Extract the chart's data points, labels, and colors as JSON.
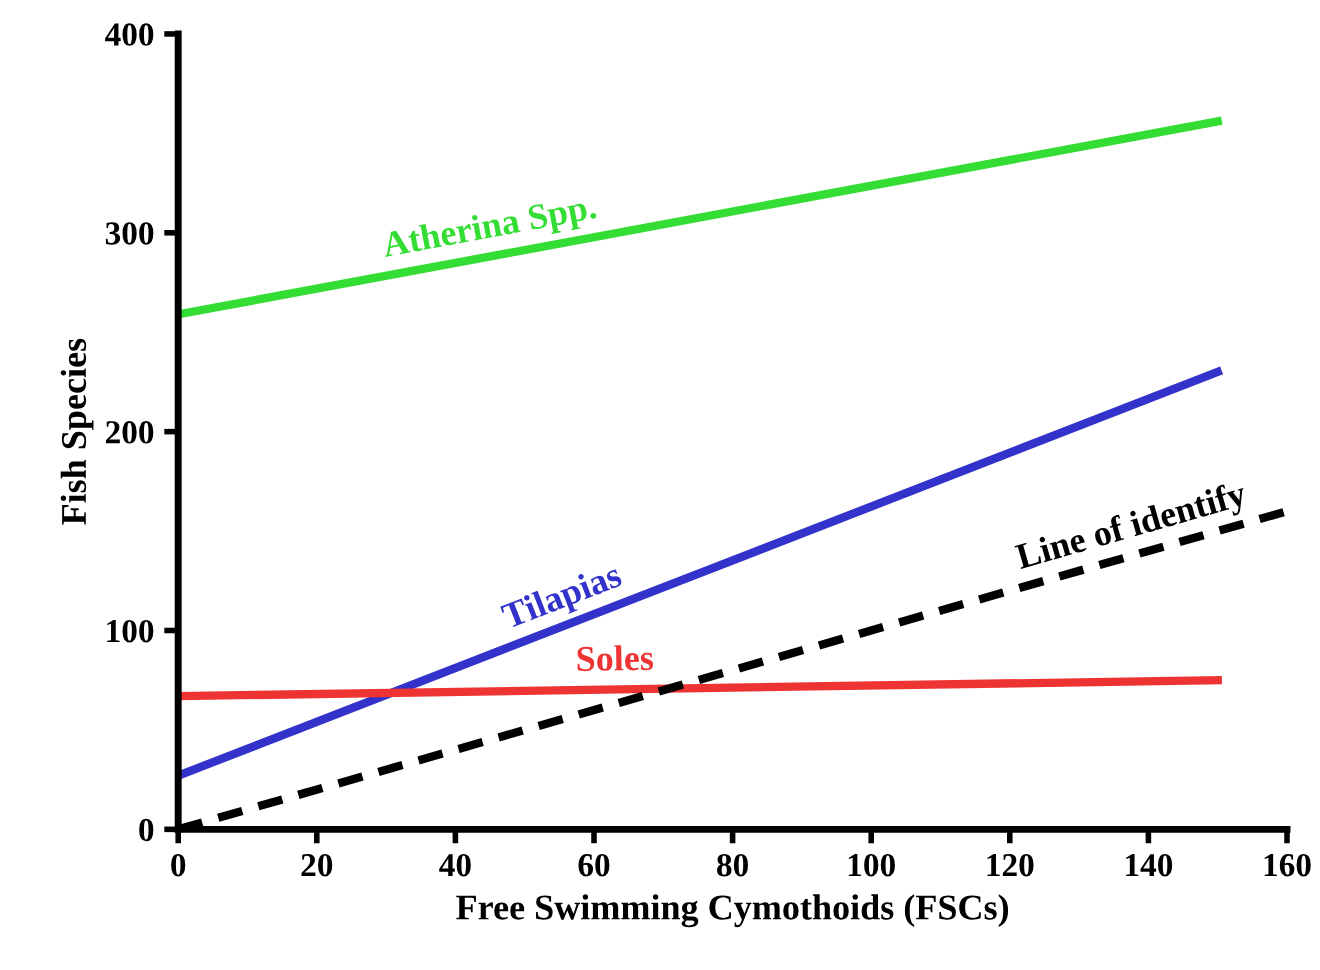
{
  "chart_data": {
    "type": "line",
    "xlabel": "Free Swimming Cymothoids (FSCs)",
    "ylabel": "Fish Species",
    "xlim": [
      0,
      160
    ],
    "ylim": [
      0,
      400
    ],
    "xticks": [
      0,
      20,
      40,
      60,
      80,
      100,
      120,
      140,
      160
    ],
    "yticks": [
      0,
      100,
      200,
      300,
      400
    ],
    "grid": false,
    "legend": false,
    "series": [
      {
        "name": "Atherina Spp.",
        "color": "#33dd33",
        "x": [
          0,
          150
        ],
        "values": [
          259,
          356
        ],
        "line_style": "solid"
      },
      {
        "name": "Tilapias",
        "color": "#3333cc",
        "x": [
          0,
          150
        ],
        "values": [
          27,
          230
        ],
        "line_style": "solid"
      },
      {
        "name": "Soles",
        "color": "#ee3333",
        "x": [
          0,
          150
        ],
        "values": [
          67,
          75
        ],
        "line_style": "solid"
      },
      {
        "name": "Line of identify",
        "color": "#000000",
        "x": [
          0,
          160
        ],
        "values": [
          0,
          160
        ],
        "line_style": "dashed"
      }
    ]
  }
}
